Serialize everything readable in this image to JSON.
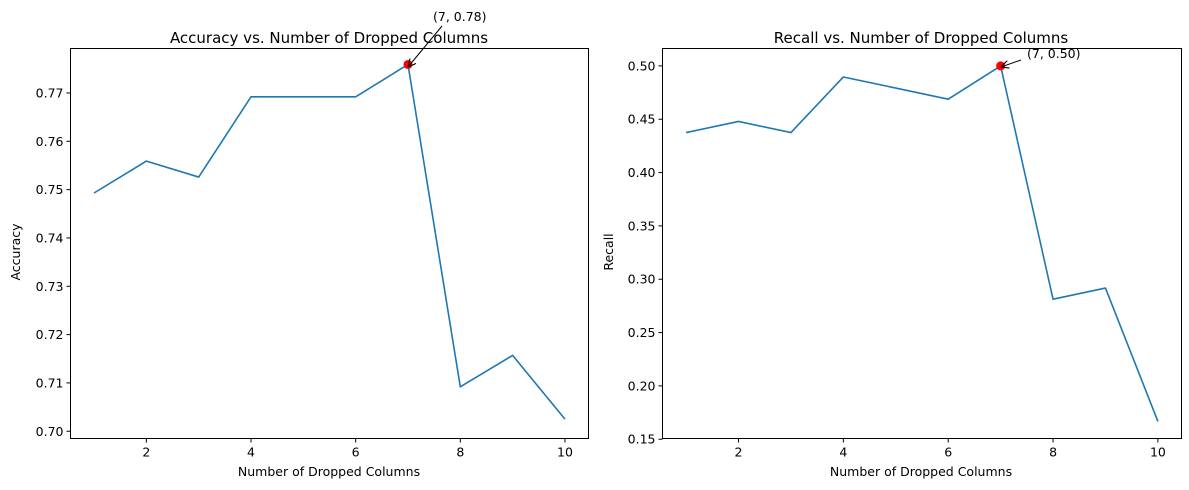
{
  "chart_data": [
    {
      "type": "line",
      "title": "Accuracy vs. Number of Dropped Columns",
      "xlabel": "Number of Dropped Columns",
      "ylabel": "Accuracy",
      "xlim": [
        0.55,
        10.45
      ],
      "ylim": [
        0.6985,
        0.7792
      ],
      "xticks": [
        2,
        4,
        6,
        8,
        10
      ],
      "xtick_labels": [
        "2",
        "4",
        "6",
        "8",
        "10"
      ],
      "yticks": [
        0.7,
        0.71,
        0.72,
        0.73,
        0.74,
        0.75,
        0.76,
        0.77
      ],
      "ytick_labels": [
        "0.70",
        "0.71",
        "0.72",
        "0.73",
        "0.74",
        "0.75",
        "0.76",
        "0.77"
      ],
      "grid": false,
      "series": [
        {
          "x": [
            1,
            2,
            3,
            4,
            5,
            6,
            7,
            8,
            9,
            10
          ],
          "values": [
            0.7493,
            0.7559,
            0.7526,
            0.7692,
            0.7692,
            0.7692,
            0.7759,
            0.7092,
            0.7157,
            0.7025
          ],
          "color": "#1f77b4"
        }
      ],
      "highlight": {
        "x": 7,
        "y": 0.7759,
        "color": "#ff0000"
      },
      "annotation": {
        "text": "(7, 0.78)",
        "x": 7,
        "y": 0.7759
      }
    },
    {
      "type": "line",
      "title": "Recall vs. Number of Dropped Columns",
      "xlabel": "Number of Dropped Columns",
      "ylabel": "Recall",
      "xlim": [
        0.55,
        10.45
      ],
      "ylim": [
        0.1507,
        0.5163
      ],
      "xticks": [
        2,
        4,
        6,
        8,
        10
      ],
      "xtick_labels": [
        "2",
        "4",
        "6",
        "8",
        "10"
      ],
      "yticks": [
        0.15,
        0.2,
        0.25,
        0.3,
        0.35,
        0.4,
        0.45,
        0.5
      ],
      "ytick_labels": [
        "0.15",
        "0.20",
        "0.25",
        "0.30",
        "0.35",
        "0.40",
        "0.45",
        "0.50"
      ],
      "grid": false,
      "series": [
        {
          "x": [
            1,
            2,
            3,
            4,
            5,
            6,
            7,
            8,
            9,
            10
          ],
          "values": [
            0.4375,
            0.4479,
            0.4375,
            0.4896,
            0.4792,
            0.4688,
            0.5,
            0.2813,
            0.2917,
            0.1667
          ],
          "color": "#1f77b4"
        }
      ],
      "highlight": {
        "x": 7,
        "y": 0.5,
        "color": "#ff0000"
      },
      "annotation": {
        "text": "(7, 0.50)",
        "x": 7,
        "y": 0.5
      }
    }
  ]
}
